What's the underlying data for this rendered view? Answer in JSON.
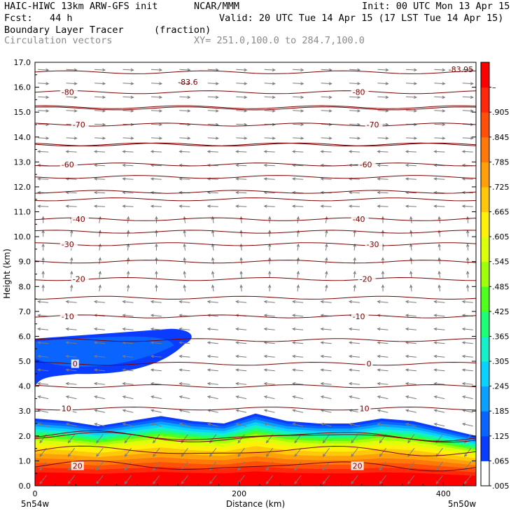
{
  "header": {
    "model": "HAIC-HIWC 13km ARW-GFS init",
    "org": "NCAR/MMM",
    "init": "Init: 00 UTC Mon 13 Apr 15",
    "fcst": "Fcst:   44 h",
    "valid": "Valid: 20 UTC Tue 14 Apr 15 (17 LST Tue 14 Apr 15)",
    "field": "Boundary Layer Tracer",
    "units": "(fraction)",
    "vectors": "Circulation vectors",
    "xsec": "XY= 251.0,100.0 to 284.7,100.0"
  },
  "chart_data": {
    "type": "heatmap",
    "title": "Boundary Layer Tracer",
    "units": "(fraction)",
    "xlabel": "Distance (km)",
    "ylabel": "Height (km)",
    "xlim": [
      0,
      432
    ],
    "ylim": [
      0,
      17
    ],
    "xticks": [
      "0",
      "200",
      "400"
    ],
    "yticks": [
      "0.0",
      "1.0",
      "2.0",
      "3.0",
      "4.0",
      "5.0",
      "6.0",
      "7.0",
      "8.0",
      "9.0",
      "10.0",
      "11.0",
      "12.0",
      "13.0",
      "14.0",
      "15.0",
      "16.0",
      "17.0"
    ],
    "endpoints": {
      "left": "5n54w",
      "right": "5n50w"
    },
    "colorbar": {
      "labels": [
        ".005",
        ".065",
        ".125",
        ".185",
        ".245",
        ".305",
        ".365",
        ".425",
        ".485",
        ".545",
        ".605",
        ".665",
        ".725",
        ".785",
        ".845",
        ".905",
        "–"
      ],
      "colors": [
        "#ffffff",
        "#0a3cff",
        "#0a64ff",
        "#0aa0ff",
        "#0ad2ff",
        "#14f0c8",
        "#1eff78",
        "#50ff1e",
        "#a0ff0a",
        "#dcff0a",
        "#fff00a",
        "#ffc80a",
        "#ffa00a",
        "#ff780a",
        "#ff500a",
        "#ff280a",
        "#ff0000"
      ]
    },
    "temperature_contours": [
      {
        "label": "-80",
        "height": 15.8
      },
      {
        "label": "-70",
        "height": 14.5
      },
      {
        "label": "-60",
        "height": 12.9
      },
      {
        "label": "-40",
        "height": 10.7
      },
      {
        "label": "-30",
        "height": 9.7
      },
      {
        "label": "-20",
        "height": 8.3
      },
      {
        "label": "-10",
        "height": 6.8
      },
      {
        "label": "0",
        "height": 4.9
      },
      {
        "label": "10",
        "height": 3.1
      },
      {
        "label": "20",
        "height": 0.8
      }
    ],
    "extremum_labels": [
      {
        "label": "-83.6",
        "x": 140,
        "height": 16.5
      },
      {
        "label": "-83.95",
        "x": 405,
        "height": 17.0
      }
    ],
    "tracer_layers": [
      {
        "name": "boundary layer",
        "top_km": [
          2.7,
          2.6,
          2.4,
          2.6,
          2.8,
          2.6,
          2.5,
          2.9,
          2.6,
          2.5,
          2.5,
          2.7,
          2.6,
          2.3,
          2.0
        ],
        "max": 1.0
      },
      {
        "name": "elevated layer",
        "x_range": [
          0,
          160
        ],
        "bottom_km": 4.0,
        "top_km": 6.3,
        "max": 0.09
      }
    ]
  }
}
